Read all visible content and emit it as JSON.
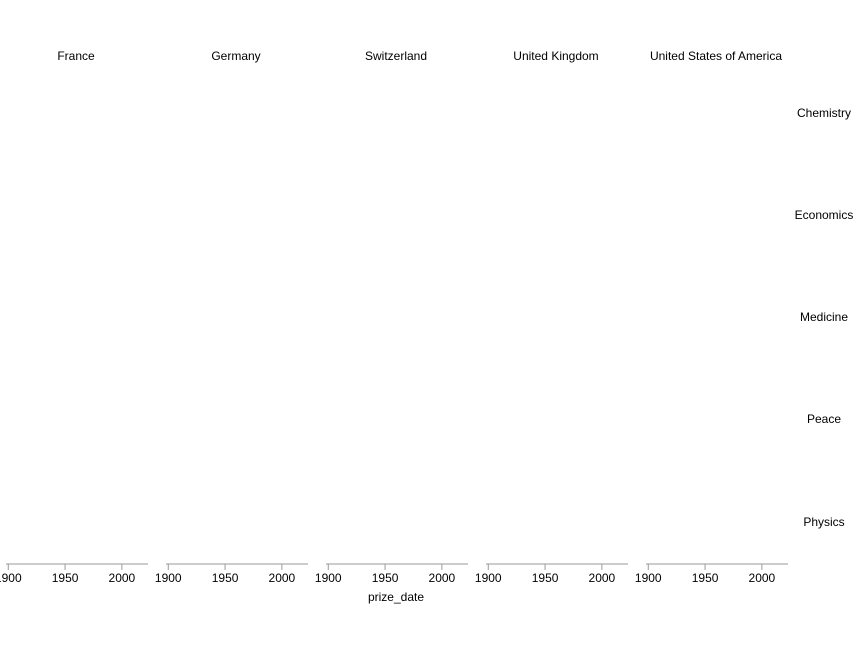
{
  "chart_data": {
    "type": "scatter",
    "title": "",
    "xlabel": "prize_date",
    "ylabel": "",
    "column_facets": [
      "France",
      "Germany",
      "Switzerland",
      "United Kingdom",
      "United States of America"
    ],
    "row_facets": [
      "Chemistry",
      "Economics",
      "Medicine",
      "Peace",
      "Physics"
    ],
    "xlim": [
      1898,
      2023
    ],
    "x_ticks": [
      "1900",
      "1950",
      "2000"
    ],
    "x_tick_values": [
      1900,
      1950,
      2000
    ],
    "points": [],
    "grid": false,
    "legend": "none"
  },
  "colors": {
    "axis": "#9a9a9a",
    "text": "#000000",
    "background": "#ffffff"
  }
}
